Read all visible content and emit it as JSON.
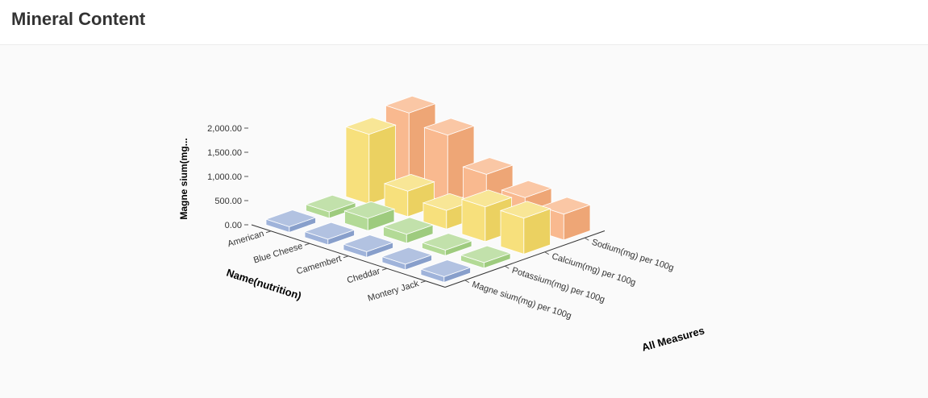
{
  "header": {
    "title": "Mineral Content"
  },
  "chart_data": {
    "type": "bar3d",
    "ylabel": "Magne sium(mg...",
    "xlabel": "Name(nutrition)",
    "zlabel": "All Measures",
    "y_ticks": [
      "0.00",
      "500.00",
      "1,000.00",
      "1,500.00",
      "2,000.00"
    ],
    "ylim": [
      0,
      2000
    ],
    "categories": [
      "American",
      "Blue Cheese",
      "Camembert",
      "Cheddar",
      "Montery Jack"
    ],
    "series": [
      {
        "name": "Magne sium(mg) per 100g",
        "values": [
          27,
          23,
          20,
          28,
          27
        ]
      },
      {
        "name": "Potassium(mg) per 100g",
        "values": [
          132,
          256,
          187,
          98,
          81
        ]
      },
      {
        "name": "Calcium(mg) per 100g",
        "values": [
          1445,
          528,
          388,
          721,
          746
        ]
      },
      {
        "name": "Sodium(mg) per 100g",
        "values": [
          1596,
          1395,
          842,
          621,
          536
        ]
      }
    ],
    "colors": [
      "#8ea6d3",
      "#a5d383",
      "#f5da65",
      "#f8ad7b"
    ]
  }
}
